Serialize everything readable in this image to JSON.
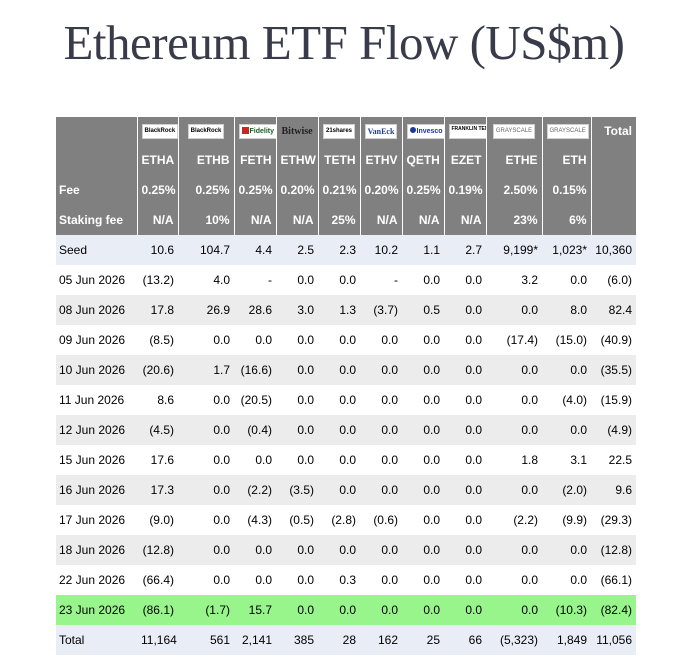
{
  "title": "Ethereum ETF Flow (US$m)",
  "colors": {
    "header_bg": "#808080",
    "negative": "#e3000f",
    "zero": "#cfcfcf",
    "highlight_row": "#98f58c",
    "seed_row": "#e9edf6"
  },
  "issuer_logos": [
    {
      "text": "BlackRock",
      "icon": "blackrock-logo"
    },
    {
      "text": "BlackRock",
      "icon": "blackrock-logo"
    },
    {
      "text": "Fidelity",
      "icon": "fidelity-logo"
    },
    {
      "text": "Bitwise",
      "icon": "bitwise-logo"
    },
    {
      "text": "21shares",
      "icon": "21shares-logo"
    },
    {
      "text": "VanEck",
      "icon": "vaneck-logo"
    },
    {
      "text": "Invesco",
      "icon": "invesco-logo"
    },
    {
      "text": "FRANKLIN TEMPLETON",
      "icon": "franklin-templeton-logo"
    },
    {
      "text": "GRAYSCALE",
      "icon": "grayscale-logo"
    },
    {
      "text": "GRAYSCALE",
      "icon": "grayscale-logo"
    }
  ],
  "total_header": "Total",
  "tickers": [
    "ETHA",
    "ETHB",
    "FETH",
    "ETHW",
    "TETH",
    "ETHV",
    "QETH",
    "EZET",
    "ETHE",
    "ETH"
  ],
  "fee_label": "Fee",
  "fees": [
    "0.25%",
    "0.25%",
    "0.25%",
    "0.20%",
    "0.21%",
    "0.20%",
    "0.25%",
    "0.19%",
    "2.50%",
    "0.15%"
  ],
  "staking_label": "Staking fee",
  "staking_fees": [
    "N/A",
    "10%",
    "N/A",
    "N/A",
    "25%",
    "N/A",
    "N/A",
    "N/A",
    "23%",
    "6%"
  ],
  "rows": [
    {
      "label": "Seed",
      "values": [
        "10.6",
        "104.7",
        "4.4",
        "2.5",
        "2.3",
        "10.2",
        "1.1",
        "2.7",
        "9,199*",
        "1,023*"
      ],
      "total": "10,360"
    },
    {
      "label": "05 Jun 2026",
      "values": [
        "(13.2)",
        "4.0",
        "-",
        "0.0",
        "0.0",
        "-",
        "0.0",
        "0.0",
        "3.2",
        "0.0"
      ],
      "total": "(6.0)"
    },
    {
      "label": "08 Jun 2026",
      "values": [
        "17.8",
        "26.9",
        "28.6",
        "3.0",
        "1.3",
        "(3.7)",
        "0.5",
        "0.0",
        "0.0",
        "8.0"
      ],
      "total": "82.4"
    },
    {
      "label": "09 Jun 2026",
      "values": [
        "(8.5)",
        "0.0",
        "0.0",
        "0.0",
        "0.0",
        "0.0",
        "0.0",
        "0.0",
        "(17.4)",
        "(15.0)"
      ],
      "total": "(40.9)"
    },
    {
      "label": "10 Jun 2026",
      "values": [
        "(20.6)",
        "1.7",
        "(16.6)",
        "0.0",
        "0.0",
        "0.0",
        "0.0",
        "0.0",
        "0.0",
        "0.0"
      ],
      "total": "(35.5)"
    },
    {
      "label": "11 Jun 2026",
      "values": [
        "8.6",
        "0.0",
        "(20.5)",
        "0.0",
        "0.0",
        "0.0",
        "0.0",
        "0.0",
        "0.0",
        "(4.0)"
      ],
      "total": "(15.9)"
    },
    {
      "label": "12 Jun 2026",
      "values": [
        "(4.5)",
        "0.0",
        "(0.4)",
        "0.0",
        "0.0",
        "0.0",
        "0.0",
        "0.0",
        "0.0",
        "0.0"
      ],
      "total": "(4.9)"
    },
    {
      "label": "15 Jun 2026",
      "values": [
        "17.6",
        "0.0",
        "0.0",
        "0.0",
        "0.0",
        "0.0",
        "0.0",
        "0.0",
        "1.8",
        "3.1"
      ],
      "total": "22.5"
    },
    {
      "label": "16 Jun 2026",
      "values": [
        "17.3",
        "0.0",
        "(2.2)",
        "(3.5)",
        "0.0",
        "0.0",
        "0.0",
        "0.0",
        "0.0",
        "(2.0)"
      ],
      "total": "9.6"
    },
    {
      "label": "17 Jun 2026",
      "values": [
        "(9.0)",
        "0.0",
        "(4.3)",
        "(0.5)",
        "(2.8)",
        "(0.6)",
        "0.0",
        "0.0",
        "(2.2)",
        "(9.9)"
      ],
      "total": "(29.3)"
    },
    {
      "label": "18 Jun 2026",
      "values": [
        "(12.8)",
        "0.0",
        "0.0",
        "0.0",
        "0.0",
        "0.0",
        "0.0",
        "0.0",
        "0.0",
        "0.0"
      ],
      "total": "(12.8)"
    },
    {
      "label": "22 Jun 2026",
      "values": [
        "(66.4)",
        "0.0",
        "0.0",
        "0.0",
        "0.3",
        "0.0",
        "0.0",
        "0.0",
        "0.0",
        "0.0"
      ],
      "total": "(66.1)"
    },
    {
      "label": "23 Jun 2026",
      "values": [
        "(86.1)",
        "(1.7)",
        "15.7",
        "0.0",
        "0.0",
        "0.0",
        "0.0",
        "0.0",
        "0.0",
        "(10.3)"
      ],
      "total": "(82.4)",
      "highlight": true
    },
    {
      "label": "Total",
      "values": [
        "11,164",
        "561",
        "2,141",
        "385",
        "28",
        "162",
        "25",
        "66",
        "(5,323)",
        "1,849"
      ],
      "total": "11,056"
    }
  ]
}
